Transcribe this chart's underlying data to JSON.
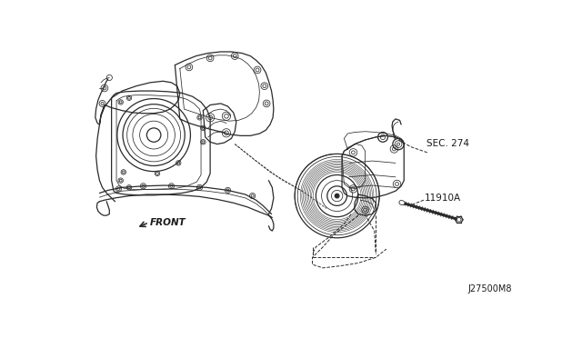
{
  "line_color": "#2a2a2a",
  "label_color": "#1a1a1a",
  "part_label_1": "SEC. 274",
  "part_label_2": "11910A",
  "front_label": "FRONT",
  "diagram_id": "J27500M8",
  "fig_width": 6.4,
  "fig_height": 3.72,
  "dpi": 100,
  "engine_scale": 1.0
}
